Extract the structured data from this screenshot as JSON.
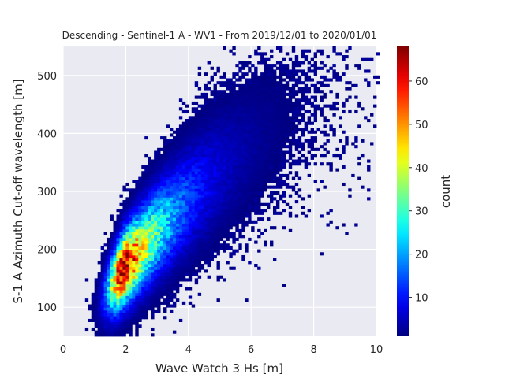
{
  "chart_data": {
    "type": "heatmap",
    "title": "Descending - Sentinel-1 A - WV1 - From 2019/12/01 to 2020/01/01",
    "xlabel": "Wave Watch 3 Hs [m]",
    "ylabel": "S-1 A Azimuth Cut-off wavelength [m]",
    "xlim": [
      0,
      10
    ],
    "ylim": [
      50,
      550
    ],
    "xticks": [
      0,
      2,
      4,
      6,
      8,
      10
    ],
    "yticks": [
      100,
      200,
      300,
      400,
      500
    ],
    "grid": true,
    "background": "#eaeaf2",
    "colormap": "jet",
    "colorbar": {
      "label": "count",
      "min": 1,
      "max": 68,
      "ticks": [
        10,
        20,
        30,
        40,
        50,
        60
      ]
    },
    "density_model": {
      "description_of_visible_trend": "counts concentrated along a positive linear relation",
      "x_bin_width": 0.1,
      "y_bin_width": 5,
      "peak_count": 68,
      "peak_location": {
        "x": 1.9,
        "y": 175
      },
      "trend_points": [
        {
          "x": 1.0,
          "y": 100
        },
        {
          "x": 2.0,
          "y": 175
        },
        {
          "x": 3.0,
          "y": 235
        },
        {
          "x": 4.0,
          "y": 290
        },
        {
          "x": 5.0,
          "y": 340
        },
        {
          "x": 6.0,
          "y": 385
        },
        {
          "x": 7.0,
          "y": 425
        },
        {
          "x": 8.0,
          "y": 460
        },
        {
          "x": 9.0,
          "y": 490
        }
      ],
      "lower_edge": {
        "x": 1.0,
        "y": 80
      },
      "upper_edge": {
        "x": 9.5,
        "y": 520
      }
    }
  }
}
